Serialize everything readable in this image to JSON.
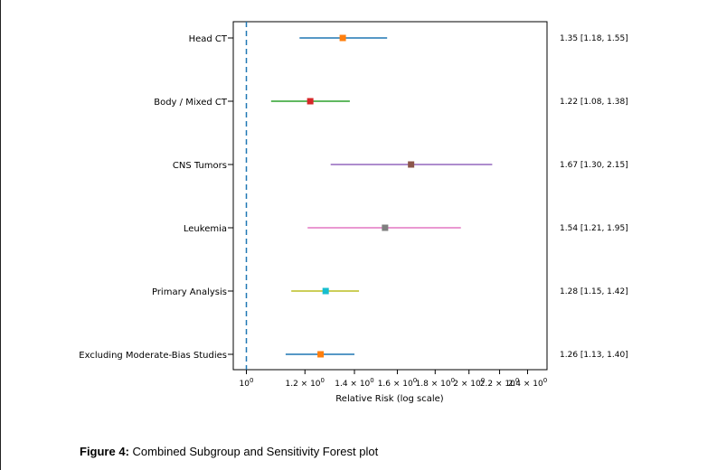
{
  "chart_data": {
    "type": "forest",
    "xlabel": "Relative Risk (log scale)",
    "x_scale": "log",
    "xlim": [
      0.96,
      2.55
    ],
    "reference_line": 1.0,
    "ticks": [
      {
        "value": 1.0,
        "base": "10",
        "exp": "0"
      },
      {
        "value": 1.2,
        "base": "1.2 × 10",
        "exp": "0"
      },
      {
        "value": 1.4,
        "base": "1.4 × 10",
        "exp": "0"
      },
      {
        "value": 1.6,
        "base": "1.6 × 10",
        "exp": "0"
      },
      {
        "value": 1.8,
        "base": "1.8 × 10",
        "exp": "0"
      },
      {
        "value": 2.0,
        "base": "2 × 10",
        "exp": "0"
      },
      {
        "value": 2.2,
        "base": "2.2 × 10",
        "exp": "0"
      },
      {
        "value": 2.4,
        "base": "2.4 × 10",
        "exp": "0"
      }
    ],
    "rows": [
      {
        "label": "Head CT",
        "rr": 1.35,
        "lo": 1.18,
        "hi": 1.55,
        "text": "1.35 [1.18, 1.55]",
        "color": "#1f77b4",
        "marker": "#ff7f0e"
      },
      {
        "label": "Body / Mixed CT",
        "rr": 1.22,
        "lo": 1.08,
        "hi": 1.38,
        "text": "1.22 [1.08, 1.38]",
        "color": "#2ca02c",
        "marker": "#d62728"
      },
      {
        "label": "CNS Tumors",
        "rr": 1.67,
        "lo": 1.3,
        "hi": 2.15,
        "text": "1.67 [1.30, 2.15]",
        "color": "#9467bd",
        "marker": "#8c564b"
      },
      {
        "label": "Leukemia",
        "rr": 1.54,
        "lo": 1.21,
        "hi": 1.95,
        "text": "1.54 [1.21, 1.95]",
        "color": "#e377c2",
        "marker": "#7f7f7f"
      },
      {
        "label": "Primary Analysis",
        "rr": 1.28,
        "lo": 1.15,
        "hi": 1.42,
        "text": "1.28 [1.15, 1.42]",
        "color": "#bcbd22",
        "marker": "#17becf"
      },
      {
        "label": "Excluding Moderate-Bias Studies",
        "rr": 1.26,
        "lo": 1.13,
        "hi": 1.4,
        "text": "1.26 [1.13, 1.40]",
        "color": "#1f77b4",
        "marker": "#ff7f0e"
      }
    ]
  },
  "caption": {
    "label": "Figure 4:",
    "text": " Combined Subgroup and Sensitivity Forest plot"
  }
}
